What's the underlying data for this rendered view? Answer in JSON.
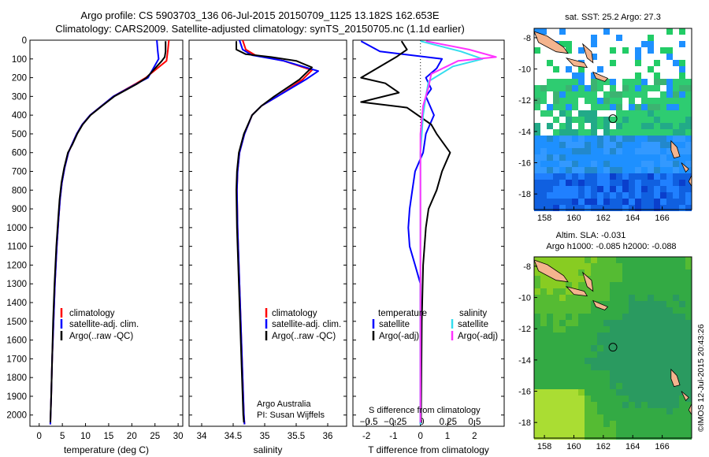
{
  "header": {
    "title_line1": "Argo profile: CS 5903703_136 06-Jul-2015 20150709_1125 13.182S 162.653E",
    "title_line2": "Climatology: CARS2009. Satellite-adjusted climatology: synTS_20150705.nc (1.1d earlier)"
  },
  "colors": {
    "climatology": "#ff0000",
    "satellite": "#0000ff",
    "argo": "#000000",
    "sal_satellite": "#33ddee",
    "sal_argo": "#ff33ff"
  },
  "panels": {
    "temperature": {
      "xlabel": "temperature (deg C)"
    },
    "salinity": {
      "xlabel": "salinity",
      "note1": "Argo Australia",
      "note2": "PI: Susan Wijffels"
    },
    "difference": {
      "xlabel": "T difference from climatology",
      "top_axis_label": "S difference from climatology",
      "legend_temp_title": "temperature",
      "legend_sal_title": "salinity"
    }
  },
  "legend": {
    "climatology": "climatology",
    "satellite_adj": "satellite-adj. clim.",
    "argo_raw": "Argo(..raw -QC)",
    "satellite": "satellite",
    "argo_adj": "Argo(-adj)"
  },
  "maps": {
    "sst_title": "sat. SST: 25.2 Argo: 27.3",
    "sla_title1": "Altim. SLA: -0.031",
    "sla_title2": "Argo h1000: -0.085 h2000: -0.088",
    "lat_ticks": [
      "-8",
      "-10",
      "-12",
      "-14",
      "-16",
      "-18"
    ],
    "lon_ticks": [
      "158",
      "160",
      "162",
      "164",
      "166"
    ],
    "float_lon": 162.653,
    "float_lat": -13.182
  },
  "footer": {
    "stamp": "©IMOS 12-Jul-2015 20:43:26"
  },
  "chart_data": [
    {
      "type": "line",
      "title": "",
      "xlabel": "temperature (deg C)",
      "ylabel": "",
      "xlim": [
        -2,
        31
      ],
      "ylim": [
        2060,
        0
      ],
      "xticks": [
        0,
        5,
        10,
        15,
        20,
        25,
        30
      ],
      "yticks": [
        0,
        100,
        200,
        300,
        400,
        500,
        600,
        700,
        800,
        900,
        1000,
        1100,
        1200,
        1300,
        1400,
        1500,
        1600,
        1700,
        1800,
        1900,
        2000
      ],
      "series": [
        {
          "name": "climatology",
          "color": "#ff0000",
          "points": [
            [
              28,
              0
            ],
            [
              27.8,
              50
            ],
            [
              27.6,
              90
            ],
            [
              27.5,
              110
            ],
            [
              23,
              200
            ],
            [
              21,
              230
            ],
            [
              16,
              300
            ],
            [
              13.5,
              350
            ],
            [
              11,
              400
            ],
            [
              9.3,
              450
            ],
            [
              8.1,
              500
            ],
            [
              7,
              560
            ],
            [
              6.3,
              600
            ],
            [
              5.5,
              680
            ],
            [
              4.9,
              760
            ],
            [
              4.5,
              850
            ],
            [
              4.2,
              950
            ],
            [
              3.8,
              1100
            ],
            [
              3.4,
              1300
            ],
            [
              3.1,
              1500
            ],
            [
              2.8,
              1700
            ],
            [
              2.6,
              1900
            ],
            [
              2.4,
              2050
            ]
          ]
        },
        {
          "name": "satellite-adj. clim.",
          "color": "#0000ff",
          "points": [
            [
              25.4,
              0
            ],
            [
              25.6,
              60
            ],
            [
              25.8,
              100
            ],
            [
              23.5,
              200
            ],
            [
              21.2,
              230
            ],
            [
              16,
              300
            ],
            [
              13.5,
              350
            ],
            [
              11,
              400
            ],
            [
              9.3,
              450
            ],
            [
              8.1,
              500
            ],
            [
              7,
              560
            ],
            [
              6.3,
              600
            ],
            [
              5.5,
              680
            ],
            [
              4.9,
              760
            ],
            [
              4.5,
              850
            ],
            [
              4.2,
              950
            ],
            [
              3.8,
              1100
            ],
            [
              3.4,
              1300
            ],
            [
              3.1,
              1500
            ],
            [
              2.8,
              1700
            ],
            [
              2.6,
              1900
            ],
            [
              2.4,
              2050
            ]
          ]
        },
        {
          "name": "Argo(..raw -QC)",
          "color": "#000000",
          "points": [
            [
              27.3,
              5
            ],
            [
              27.3,
              60
            ],
            [
              27.1,
              90
            ],
            [
              26.5,
              110
            ],
            [
              23.2,
              200
            ],
            [
              21,
              235
            ],
            [
              16.2,
              300
            ],
            [
              13.6,
              350
            ],
            [
              11.1,
              400
            ],
            [
              9.4,
              450
            ],
            [
              8.2,
              500
            ],
            [
              7.1,
              560
            ],
            [
              6.2,
              600
            ],
            [
              5.4,
              680
            ],
            [
              4.8,
              760
            ],
            [
              4.4,
              850
            ],
            [
              4.1,
              950
            ],
            [
              3.7,
              1100
            ],
            [
              3.3,
              1300
            ],
            [
              3,
              1500
            ],
            [
              2.8,
              1700
            ],
            [
              2.6,
              1900
            ],
            [
              2.4,
              2040
            ]
          ]
        }
      ],
      "legend": "lower-left"
    },
    {
      "type": "line",
      "title": "",
      "xlabel": "salinity",
      "ylabel": "",
      "xlim": [
        33.8,
        36.3
      ],
      "ylim": [
        2060,
        0
      ],
      "xticks": [
        34,
        34.5,
        35,
        35.5,
        36
      ],
      "series": [
        {
          "name": "climatology",
          "color": "#ff0000",
          "points": [
            [
              34.65,
              0
            ],
            [
              34.7,
              50
            ],
            [
              34.85,
              80
            ],
            [
              35.3,
              110
            ],
            [
              35.75,
              160
            ],
            [
              35.6,
              210
            ],
            [
              35.2,
              300
            ],
            [
              34.95,
              350
            ],
            [
              34.8,
              400
            ],
            [
              34.68,
              500
            ],
            [
              34.6,
              600
            ],
            [
              34.57,
              700
            ],
            [
              34.56,
              800
            ],
            [
              34.57,
              1000
            ],
            [
              34.59,
              1200
            ],
            [
              34.61,
              1400
            ],
            [
              34.63,
              1600
            ],
            [
              34.65,
              1800
            ],
            [
              34.67,
              2000
            ],
            [
              34.68,
              2050
            ]
          ]
        },
        {
          "name": "satellite-adj. clim.",
          "color": "#0000ff",
          "points": [
            [
              34.6,
              0
            ],
            [
              34.65,
              50
            ],
            [
              34.8,
              80
            ],
            [
              35.3,
              110
            ],
            [
              35.85,
              165
            ],
            [
              35.65,
              210
            ],
            [
              35.2,
              300
            ],
            [
              34.95,
              350
            ],
            [
              34.8,
              400
            ],
            [
              34.68,
              500
            ],
            [
              34.6,
              600
            ],
            [
              34.57,
              700
            ],
            [
              34.56,
              800
            ],
            [
              34.57,
              1000
            ],
            [
              34.59,
              1200
            ],
            [
              34.61,
              1400
            ],
            [
              34.63,
              1600
            ],
            [
              34.65,
              1800
            ],
            [
              34.67,
              2000
            ],
            [
              34.68,
              2050
            ]
          ]
        },
        {
          "name": "Argo(..raw -QC)",
          "color": "#000000",
          "points": [
            [
              34.55,
              5
            ],
            [
              34.55,
              50
            ],
            [
              34.7,
              75
            ],
            [
              35.1,
              90
            ],
            [
              35.5,
              110
            ],
            [
              35.75,
              145
            ],
            [
              35.55,
              210
            ],
            [
              35.15,
              300
            ],
            [
              34.95,
              350
            ],
            [
              34.8,
              400
            ],
            [
              34.67,
              500
            ],
            [
              34.59,
              600
            ],
            [
              34.56,
              700
            ],
            [
              34.55,
              800
            ],
            [
              34.56,
              1000
            ],
            [
              34.58,
              1200
            ],
            [
              34.6,
              1400
            ],
            [
              34.62,
              1600
            ],
            [
              34.64,
              1800
            ],
            [
              34.66,
              2000
            ],
            [
              34.67,
              2040
            ]
          ]
        }
      ],
      "legend": "lower-left"
    },
    {
      "type": "line",
      "title": "",
      "xlabel": "T difference from climatology",
      "x2label": "S difference from climatology",
      "ylabel": "",
      "xlim": [
        -2.5,
        3.1
      ],
      "ylim": [
        2060,
        0
      ],
      "xticks": [
        -2,
        -1,
        0,
        1,
        2
      ],
      "x2ticks": [
        -0.5,
        -0.25,
        0,
        0.25,
        0.5
      ],
      "x2ticks_labels": [
        "−0.5",
        "−0.25",
        "0",
        "0.25",
        "0.5"
      ],
      "series": [
        {
          "name": "temperature satellite",
          "color": "#0000ff",
          "points": [
            [
              -2.2,
              5
            ],
            [
              -1.5,
              60
            ],
            [
              0.8,
              100
            ],
            [
              0.6,
              150
            ],
            [
              0.2,
              200
            ],
            [
              0.4,
              260
            ],
            [
              0.2,
              300
            ],
            [
              0.5,
              400
            ],
            [
              0.2,
              500
            ],
            [
              0.1,
              600
            ],
            [
              -0.2,
              700
            ],
            [
              -0.3,
              800
            ],
            [
              -0.4,
              900
            ],
            [
              -0.45,
              1000
            ],
            [
              -0.4,
              1100
            ],
            [
              -0.2,
              1200
            ],
            [
              0,
              1300
            ],
            [
              0,
              2050
            ]
          ]
        },
        {
          "name": "temperature Argo(-adj)",
          "color": "#000000",
          "points": [
            [
              -0.7,
              5
            ],
            [
              -0.5,
              50
            ],
            [
              -0.9,
              90
            ],
            [
              -2.2,
              200
            ],
            [
              -1.3,
              230
            ],
            [
              -0.8,
              280
            ],
            [
              -2.2,
              330
            ],
            [
              -0.5,
              360
            ],
            [
              0.4,
              450
            ],
            [
              0.6,
              500
            ],
            [
              1.1,
              600
            ],
            [
              0.8,
              700
            ],
            [
              0.6,
              800
            ],
            [
              0.3,
              900
            ],
            [
              0.2,
              1000
            ],
            [
              0.1,
              1200
            ],
            [
              0.05,
              1500
            ],
            [
              0.02,
              2040
            ]
          ]
        },
        {
          "name": "salinity satellite",
          "color": "#33ddee",
          "points": [
            [
              0,
              5
            ],
            [
              1.5,
              60
            ],
            [
              2.3,
              100
            ],
            [
              1.2,
              140
            ],
            [
              0.3,
              220
            ],
            [
              0.2,
              300
            ],
            [
              0.1,
              400
            ],
            [
              0.05,
              500
            ],
            [
              0,
              600
            ],
            [
              0,
              2050
            ]
          ]
        },
        {
          "name": "salinity Argo(-adj)",
          "color": "#ff33ff",
          "points": [
            [
              0.2,
              5
            ],
            [
              1.8,
              50
            ],
            [
              2.8,
              90
            ],
            [
              1.4,
              110
            ],
            [
              0.4,
              180
            ],
            [
              0.3,
              250
            ],
            [
              0.1,
              350
            ],
            [
              0,
              500
            ],
            [
              0,
              600
            ],
            [
              0,
              2040
            ]
          ]
        }
      ],
      "legend": "lower-center"
    }
  ]
}
